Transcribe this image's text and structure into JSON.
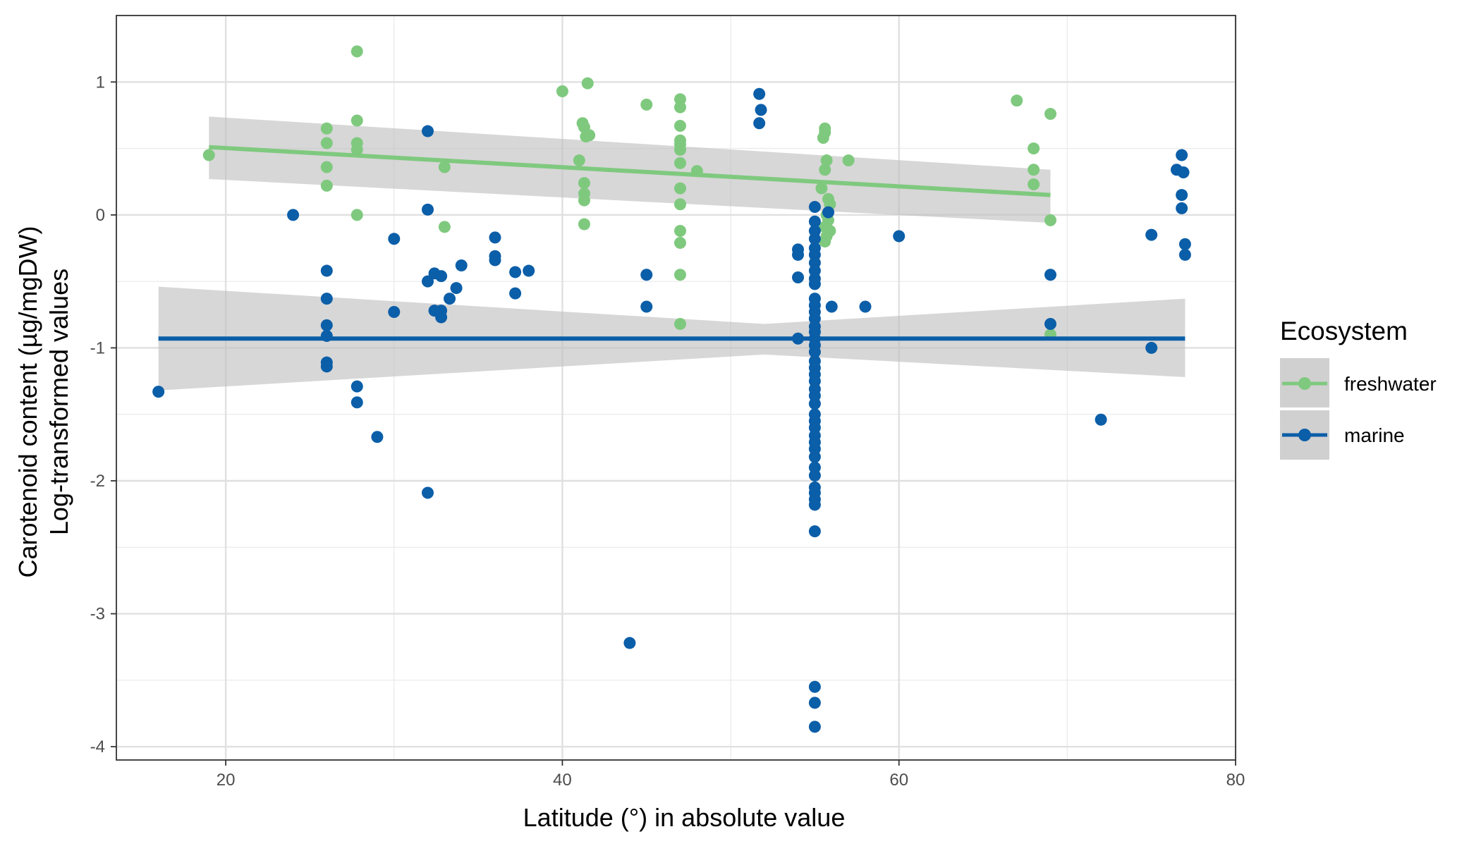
{
  "chart_data": {
    "type": "scatter",
    "title": "",
    "xlabel": "Latitude (°) in absolute value",
    "ylabel": [
      "Carotenoid content (µg/mgDW)",
      "Log-transformed values"
    ],
    "xlim": [
      13.5,
      80
    ],
    "ylim": [
      -4.1,
      1.5
    ],
    "x_ticks": [
      20,
      40,
      60,
      80
    ],
    "x_tick_labels": [
      "20",
      "40",
      "60",
      "80"
    ],
    "y_ticks": [
      -4,
      -3,
      -2,
      -1,
      0,
      1
    ],
    "y_tick_labels": [
      "-4",
      "-3",
      "-2",
      "-1",
      "0",
      "1"
    ],
    "grid": true,
    "legend": {
      "title": "Ecosystem",
      "position": "right"
    },
    "series": [
      {
        "name": "freshwater",
        "color": "#7fc97f",
        "points": [
          [
            19,
            0.45
          ],
          [
            26,
            0.65
          ],
          [
            26,
            0.54
          ],
          [
            26,
            0.36
          ],
          [
            26,
            0.22
          ],
          [
            27.8,
            1.23
          ],
          [
            27.8,
            0.71
          ],
          [
            27.8,
            0.54
          ],
          [
            27.8,
            0.49
          ],
          [
            27.8,
            0.0
          ],
          [
            33,
            0.36
          ],
          [
            33,
            -0.09
          ],
          [
            40,
            0.93
          ],
          [
            41.5,
            0.99
          ],
          [
            41,
            0.41
          ],
          [
            41.2,
            0.69
          ],
          [
            41.3,
            0.66
          ],
          [
            41.4,
            0.59
          ],
          [
            41.6,
            0.6
          ],
          [
            41.3,
            0.24
          ],
          [
            41.3,
            0.16
          ],
          [
            41.3,
            0.11
          ],
          [
            41.3,
            -0.07
          ],
          [
            45,
            0.83
          ],
          [
            47,
            0.87
          ],
          [
            47,
            0.81
          ],
          [
            47,
            0.67
          ],
          [
            47,
            0.56
          ],
          [
            47,
            0.53
          ],
          [
            47,
            0.49
          ],
          [
            47,
            0.39
          ],
          [
            47,
            0.2
          ],
          [
            47,
            0.08
          ],
          [
            47,
            -0.12
          ],
          [
            47,
            -0.21
          ],
          [
            47,
            -0.45
          ],
          [
            47,
            -0.82
          ],
          [
            48,
            0.33
          ],
          [
            55.4,
            0.2
          ],
          [
            55.6,
            0.62
          ],
          [
            55.6,
            0.65
          ],
          [
            55.5,
            0.58
          ],
          [
            55.7,
            0.41
          ],
          [
            55.6,
            0.34
          ],
          [
            55.8,
            0.12
          ],
          [
            55.9,
            0.08
          ],
          [
            55.7,
            0.0
          ],
          [
            55.8,
            -0.04
          ],
          [
            55.6,
            -0.09
          ],
          [
            55.9,
            -0.12
          ],
          [
            55.7,
            -0.16
          ],
          [
            55.6,
            -0.2
          ],
          [
            57,
            0.41
          ],
          [
            67,
            0.86
          ],
          [
            68,
            0.5
          ],
          [
            68,
            0.34
          ],
          [
            68,
            0.23
          ],
          [
            69,
            0.76
          ],
          [
            69,
            -0.04
          ],
          [
            69,
            -0.9
          ]
        ],
        "trend": {
          "x": [
            19,
            69
          ],
          "y": [
            0.51,
            0.15
          ],
          "ci_lower": [
            0.27,
            -0.06
          ],
          "ci_upper": [
            0.74,
            0.34
          ]
        }
      },
      {
        "name": "marine",
        "color": "#0b5ea8",
        "points": [
          [
            16,
            -1.33
          ],
          [
            24,
            0.0
          ],
          [
            26,
            -0.42
          ],
          [
            26,
            -0.63
          ],
          [
            26,
            -0.83
          ],
          [
            26,
            -0.91
          ],
          [
            26,
            -1.11
          ],
          [
            26,
            -1.14
          ],
          [
            27.8,
            -1.29
          ],
          [
            27.8,
            -1.41
          ],
          [
            29,
            -1.67
          ],
          [
            30,
            -0.18
          ],
          [
            30,
            -0.73
          ],
          [
            32,
            0.63
          ],
          [
            32,
            0.04
          ],
          [
            32,
            -0.5
          ],
          [
            32,
            -2.09
          ],
          [
            32.4,
            -0.44
          ],
          [
            32.4,
            -0.72
          ],
          [
            32.8,
            -0.46
          ],
          [
            32.8,
            -0.72
          ],
          [
            32.8,
            -0.77
          ],
          [
            33.3,
            -0.63
          ],
          [
            33.7,
            -0.55
          ],
          [
            34,
            -0.38
          ],
          [
            36,
            -0.17
          ],
          [
            36,
            -0.31
          ],
          [
            36,
            -0.34
          ],
          [
            37.2,
            -0.43
          ],
          [
            37.2,
            -0.59
          ],
          [
            38,
            -0.42
          ],
          [
            44,
            -3.22
          ],
          [
            45,
            -0.45
          ],
          [
            45,
            -0.69
          ],
          [
            51.7,
            0.91
          ],
          [
            51.8,
            0.79
          ],
          [
            51.7,
            0.69
          ],
          [
            54,
            -0.26
          ],
          [
            54,
            -0.3
          ],
          [
            54,
            -0.47
          ],
          [
            54,
            -0.93
          ],
          [
            55,
            0.06
          ],
          [
            55,
            -0.05
          ],
          [
            55,
            -0.12
          ],
          [
            55,
            -0.18
          ],
          [
            55,
            -0.25
          ],
          [
            55,
            -0.3
          ],
          [
            55,
            -0.36
          ],
          [
            55,
            -0.42
          ],
          [
            55,
            -0.48
          ],
          [
            55,
            -0.52
          ],
          [
            55,
            -0.63
          ],
          [
            55,
            -0.68
          ],
          [
            55,
            -0.73
          ],
          [
            55,
            -0.78
          ],
          [
            55,
            -0.84
          ],
          [
            55,
            -0.88
          ],
          [
            55,
            -0.93
          ],
          [
            55,
            -0.98
          ],
          [
            55,
            -1.03
          ],
          [
            55,
            -1.1
          ],
          [
            55,
            -1.15
          ],
          [
            55,
            -1.2
          ],
          [
            55,
            -1.25
          ],
          [
            55,
            -1.31
          ],
          [
            55,
            -1.36
          ],
          [
            55,
            -1.42
          ],
          [
            55,
            -1.5
          ],
          [
            55,
            -1.55
          ],
          [
            55,
            -1.6
          ],
          [
            55,
            -1.66
          ],
          [
            55,
            -1.71
          ],
          [
            55,
            -1.76
          ],
          [
            55,
            -1.82
          ],
          [
            55,
            -1.9
          ],
          [
            55,
            -1.96
          ],
          [
            55,
            -2.05
          ],
          [
            55,
            -2.09
          ],
          [
            55,
            -2.14
          ],
          [
            55,
            -2.18
          ],
          [
            55,
            -2.38
          ],
          [
            55,
            -3.55
          ],
          [
            55,
            -3.67
          ],
          [
            55,
            -3.85
          ],
          [
            55.8,
            0.02
          ],
          [
            56,
            -0.69
          ],
          [
            58,
            -0.69
          ],
          [
            60,
            -0.16
          ],
          [
            69,
            -0.45
          ],
          [
            69,
            -0.82
          ],
          [
            72,
            -1.54
          ],
          [
            75,
            -0.15
          ],
          [
            75,
            -1.0
          ],
          [
            76.5,
            0.34
          ],
          [
            76.8,
            0.45
          ],
          [
            76.9,
            0.32
          ],
          [
            76.8,
            0.15
          ],
          [
            76.8,
            0.05
          ],
          [
            77,
            -0.22
          ],
          [
            77,
            -0.3
          ]
        ],
        "trend": {
          "x": [
            16,
            77
          ],
          "y": [
            -0.93,
            -0.93
          ],
          "ci_lower": [
            -1.32,
            -1.22
          ],
          "ci_upper": [
            -0.54,
            -0.63
          ],
          "ci_center": {
            "x": 52,
            "lower": -1.05,
            "upper": -0.82
          }
        }
      }
    ]
  }
}
